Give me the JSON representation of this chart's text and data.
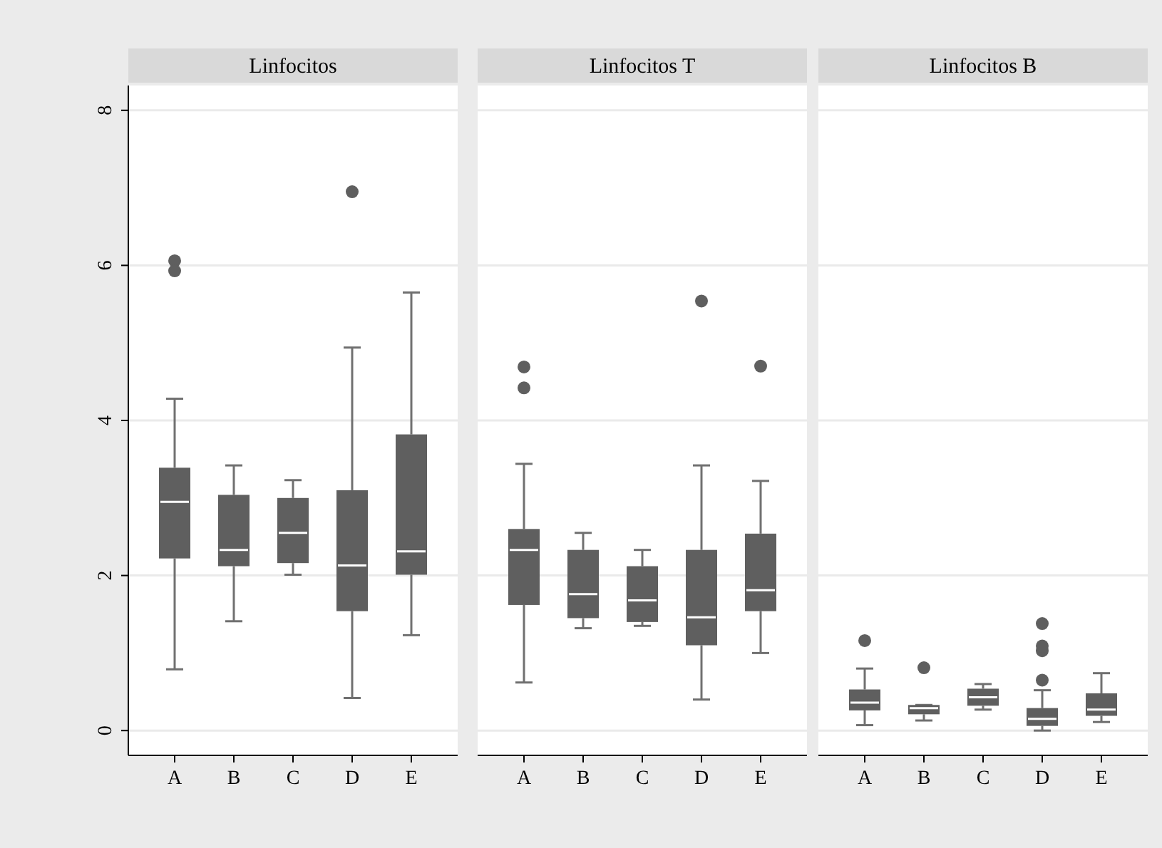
{
  "chart_data": [
    {
      "type": "box",
      "title": "Linfocitos",
      "categories": [
        "A",
        "B",
        "C",
        "D",
        "E"
      ],
      "color": "#5f5f5f",
      "ylim": [
        -0.32,
        8.32
      ],
      "yticks": [
        0,
        2,
        4,
        6,
        8
      ],
      "grid": "y",
      "boxes": [
        {
          "low": 0.79,
          "q1": 2.22,
          "median": 2.95,
          "q3": 3.39,
          "high": 4.28,
          "outliers": [
            6.06,
            5.93
          ]
        },
        {
          "low": 1.41,
          "q1": 2.12,
          "median": 2.33,
          "q3": 3.04,
          "high": 3.42
        },
        {
          "low": 2.01,
          "q1": 2.16,
          "median": 2.55,
          "q3": 3.0,
          "high": 3.23
        },
        {
          "low": 0.42,
          "q1": 1.54,
          "median": 2.13,
          "q3": 3.1,
          "high": 4.94,
          "outliers": [
            6.95
          ]
        },
        {
          "low": 1.23,
          "q1": 2.01,
          "median": 2.31,
          "q3": 3.82,
          "high": 5.65
        }
      ]
    },
    {
      "type": "box",
      "title": "Linfocitos T",
      "categories": [
        "A",
        "B",
        "C",
        "D",
        "E"
      ],
      "color": "#5f5f5f",
      "ylim": [
        -0.32,
        8.32
      ],
      "yticks": [
        0,
        2,
        4,
        6,
        8
      ],
      "grid": "y",
      "tick_labels": "x",
      "boxes": [
        {
          "low": 0.62,
          "q1": 1.62,
          "median": 2.33,
          "q3": 2.6,
          "high": 3.44,
          "outliers": [
            4.69,
            4.42
          ]
        },
        {
          "low": 1.32,
          "q1": 1.45,
          "median": 1.76,
          "q3": 2.33,
          "high": 2.55
        },
        {
          "low": 1.35,
          "q1": 1.4,
          "median": 1.68,
          "q3": 2.12,
          "high": 2.33
        },
        {
          "low": 0.4,
          "q1": 1.1,
          "median": 1.46,
          "q3": 2.33,
          "high": 3.42,
          "outliers": [
            5.54
          ]
        },
        {
          "low": 1.0,
          "q1": 1.54,
          "median": 1.81,
          "q3": 2.54,
          "high": 3.22,
          "outliers": [
            4.7
          ]
        }
      ]
    },
    {
      "type": "box",
      "title": "Linfocitos B",
      "categories": [
        "A",
        "B",
        "C",
        "D",
        "E"
      ],
      "color": "#5f5f5f",
      "ylim": [
        -0.32,
        8.32
      ],
      "yticks": [
        0,
        2,
        4,
        6,
        8
      ],
      "grid": "y",
      "tick_labels": "x",
      "boxes": [
        {
          "low": 0.07,
          "q1": 0.26,
          "median": 0.36,
          "q3": 0.53,
          "high": 0.8,
          "outliers": [
            1.16
          ]
        },
        {
          "low": 0.13,
          "q1": 0.21,
          "median": 0.29,
          "q3": 0.33,
          "high": 0.33,
          "outliers": [
            0.81
          ]
        },
        {
          "low": 0.27,
          "q1": 0.32,
          "median": 0.43,
          "q3": 0.54,
          "high": 0.6
        },
        {
          "low": 0.0,
          "q1": 0.06,
          "median": 0.15,
          "q3": 0.29,
          "high": 0.52,
          "outliers": [
            0.65,
            1.03,
            1.09,
            1.38
          ]
        },
        {
          "low": 0.11,
          "q1": 0.19,
          "median": 0.27,
          "q3": 0.48,
          "high": 0.74
        }
      ]
    }
  ]
}
